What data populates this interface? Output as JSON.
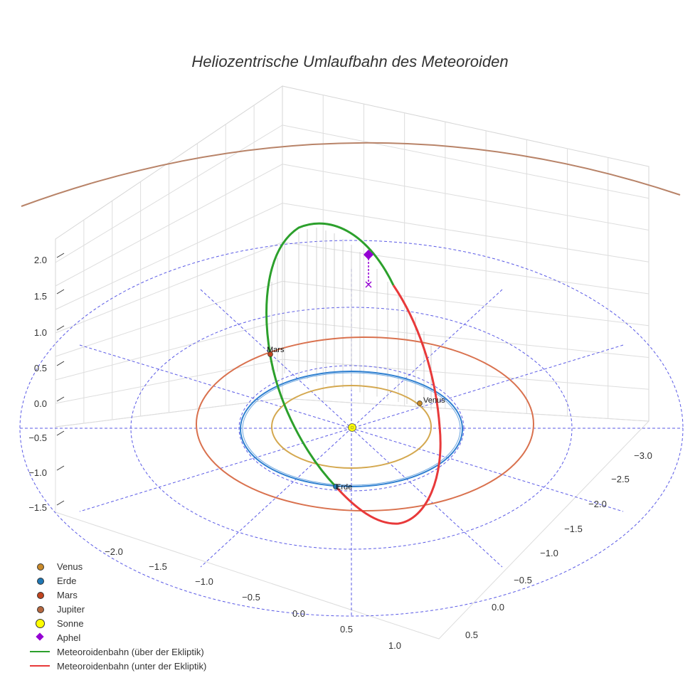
{
  "chart_data": {
    "type": "scatter3d",
    "title": "Heliozentrische Umlaufbahn des Meteoroiden",
    "x_ticks": [
      "1.0",
      "0.5",
      "0.0",
      "−0.5",
      "−1.0",
      "−1.5",
      "−2.0"
    ],
    "y_ticks": [
      "0.5",
      "0.0",
      "−0.5",
      "−1.0",
      "−1.5",
      "−2.0",
      "−2.5",
      "−3.0"
    ],
    "z_ticks": [
      "2.0",
      "1.5",
      "1.0",
      "0.5",
      "0.0",
      "−0.5",
      "−1.0",
      "−1.5"
    ],
    "planets": [
      {
        "name": "Venus",
        "color": "#c98a2a",
        "orbit_color": "#d4a84f"
      },
      {
        "name": "Erde",
        "color": "#1f77b4",
        "orbit_color": "#2e7fd0"
      },
      {
        "name": "Mars",
        "color": "#c1441e",
        "orbit_color": "#d9714e"
      },
      {
        "name": "Jupiter",
        "color": "#b5673f",
        "orbit_color": "#b88368"
      }
    ],
    "sun": {
      "name": "Sonne",
      "color": "#ffff00"
    },
    "aphel": {
      "name": "Aphel",
      "color": "#9400d3"
    },
    "orbit_segments": [
      {
        "name": "Meteoroidenbahn (über der Ekliptik)",
        "color": "#2ca02c"
      },
      {
        "name": "Meteoroidenbahn (unter der Ekliptik)",
        "color": "#e8393a"
      }
    ],
    "ecliptic_grid_color": "#5a5ae6"
  },
  "legend": [
    {
      "label": "Venus",
      "symbol": "dot",
      "color": "#c98a2a"
    },
    {
      "label": "Erde",
      "symbol": "dot",
      "color": "#1f77b4"
    },
    {
      "label": "Mars",
      "symbol": "dot",
      "color": "#c1441e"
    },
    {
      "label": "Jupiter",
      "symbol": "dot",
      "color": "#b5673f"
    },
    {
      "label": "Sonne",
      "symbol": "bigdot",
      "color": "#ffff00"
    },
    {
      "label": "Aphel",
      "symbol": "diamond",
      "color": "#9400d3"
    },
    {
      "label": "Meteoroidenbahn (über der Ekliptik)",
      "symbol": "line",
      "color": "#2ca02c"
    },
    {
      "label": "Meteoroidenbahn (unter der Ekliptik)",
      "symbol": "line",
      "color": "#e8393a"
    }
  ]
}
